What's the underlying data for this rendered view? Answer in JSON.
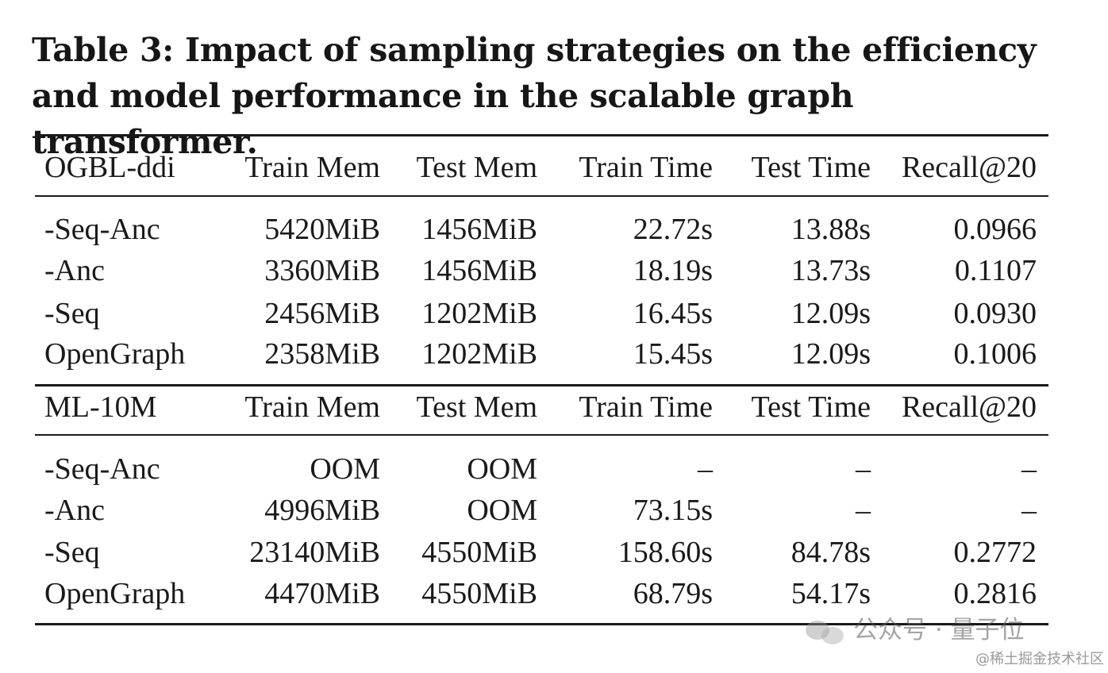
{
  "caption": "Table 3: Impact of sampling strategies on the efficiency and model performance in the scalable graph transformer.",
  "sections": [
    {
      "header": [
        "OGBL-ddi",
        "Train Mem",
        "Test Mem",
        "Train Time",
        "Test Time",
        "Recall@20"
      ],
      "rows": [
        [
          "-Seq-Anc",
          "5420MiB",
          "1456MiB",
          "22.72s",
          "13.88s",
          "0.0966"
        ],
        [
          "-Anc",
          "3360MiB",
          "1456MiB",
          "18.19s",
          "13.73s",
          "0.1107"
        ],
        [
          "-Seq",
          "2456MiB",
          "1202MiB",
          "16.45s",
          "12.09s",
          "0.0930"
        ],
        [
          "OpenGraph",
          "2358MiB",
          "1202MiB",
          "15.45s",
          "12.09s",
          "0.1006"
        ]
      ]
    },
    {
      "header": [
        "ML-10M",
        "Train Mem",
        "Test Mem",
        "Train Time",
        "Test Time",
        "Recall@20"
      ],
      "rows": [
        [
          "-Seq-Anc",
          "OOM",
          "OOM",
          "–",
          "–",
          "–"
        ],
        [
          "-Anc",
          "4996MiB",
          "OOM",
          "73.15s",
          "–",
          "–"
        ],
        [
          "-Seq",
          "23140MiB",
          "4550MiB",
          "158.60s",
          "84.78s",
          "0.2772"
        ],
        [
          "OpenGraph",
          "4470MiB",
          "4550MiB",
          "68.79s",
          "54.17s",
          "0.2816"
        ]
      ]
    }
  ],
  "watermark": {
    "icon": "wechat-icon",
    "text": "公众号 · 量子位"
  },
  "site_credit": "@稀土掘金技术社区"
}
